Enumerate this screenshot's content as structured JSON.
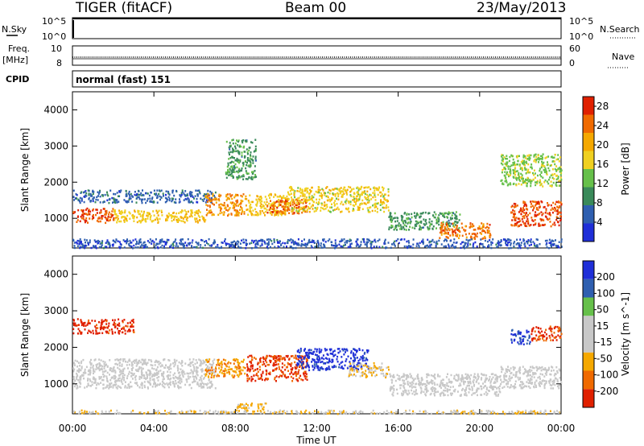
{
  "header": {
    "radar": "TIGER (fitACF)",
    "beam": "Beam 00",
    "date": "23/May/2013"
  },
  "strips": {
    "nsky_label": "N.Sky",
    "nsky_ticks": [
      "10^5",
      "10^0"
    ],
    "nsearch_label": "N.Search",
    "nsearch_ticks": [
      "10^5",
      "10^0"
    ],
    "freq_label": "Freq.",
    "freq_unit": "[MHz]",
    "freq_ticks": [
      "10",
      "8"
    ],
    "nave_label": "Nave",
    "nave_ticks": [
      "60",
      "0"
    ],
    "cpid_label": "CPID",
    "cpid_value": "normal (fast) 151"
  },
  "colors": {
    "power_scale": [
      "#1f2fd8",
      "#2f5fb0",
      "#3a8a5a",
      "#66c04a",
      "#f0d020",
      "#f5a800",
      "#f06a00",
      "#e02000"
    ],
    "velocity_scale": [
      "#e02000",
      "#f06a00",
      "#f5a800",
      "#c8c8c8",
      "#c8c8c8",
      "#66c04a",
      "#2f5fb0",
      "#1f2fd8"
    ]
  },
  "chart_data": [
    {
      "type": "heatmap",
      "panel": "power",
      "ylabel": "Slant Range [km]",
      "xlabel": "",
      "xticks": [
        "00:00",
        "04:00",
        "08:00",
        "12:00",
        "16:00",
        "20:00",
        "00:00"
      ],
      "xlim_hours": [
        0,
        24
      ],
      "ylim": [
        180,
        4500
      ],
      "yticks": [
        "1000",
        "2000",
        "3000",
        "4000"
      ],
      "colorbar": {
        "label": "Power [dB]",
        "ticks": [
          "4",
          "8",
          "12",
          "16",
          "20",
          "24",
          "28"
        ],
        "range": [
          0,
          30
        ]
      },
      "scatter_regions": [
        {
          "t": [
            0.0,
            2.0
          ],
          "r": [
            900,
            1300
          ],
          "value": 26
        },
        {
          "t": [
            2.0,
            6.5
          ],
          "r": [
            900,
            1250
          ],
          "value": 18
        },
        {
          "t": [
            0.0,
            7.0
          ],
          "r": [
            1450,
            1800
          ],
          "value": 6
        },
        {
          "t": [
            6.5,
            8.5
          ],
          "r": [
            1100,
            1700
          ],
          "value": 22
        },
        {
          "t": [
            8.5,
            10.5
          ],
          "r": [
            1100,
            1700
          ],
          "value": 18
        },
        {
          "t": [
            9.5,
            11.5
          ],
          "r": [
            1150,
            1550
          ],
          "value": 25
        },
        {
          "t": [
            10.5,
            15.5
          ],
          "r": [
            1200,
            1900
          ],
          "value": 17
        },
        {
          "t": [
            15.5,
            19.0
          ],
          "r": [
            700,
            1200
          ],
          "value": 10
        },
        {
          "t": [
            18.0,
            20.5
          ],
          "r": [
            450,
            900
          ],
          "value": 24
        },
        {
          "t": [
            21.5,
            24.0
          ],
          "r": [
            800,
            1500
          ],
          "value": 26
        },
        {
          "t": [
            21.0,
            24.0
          ],
          "r": [
            1900,
            2800
          ],
          "value": 14
        },
        {
          "t": [
            7.5,
            9.0
          ],
          "r": [
            2100,
            3200
          ],
          "value": 10
        },
        {
          "t": [
            0.0,
            24.0
          ],
          "r": [
            200,
            450
          ],
          "value": 5
        }
      ]
    },
    {
      "type": "heatmap",
      "panel": "velocity",
      "ylabel": "Slant Range [km]",
      "xlabel": "Time UT",
      "xticks": [
        "00:00",
        "04:00",
        "08:00",
        "12:00",
        "16:00",
        "20:00",
        "00:00"
      ],
      "xlim_hours": [
        0,
        24
      ],
      "ylim": [
        180,
        4500
      ],
      "yticks": [
        "1000",
        "2000",
        "3000",
        "4000"
      ],
      "colorbar": {
        "label": "Velocity [m s^-1]",
        "ticks": [
          "200",
          "100",
          "50",
          "15",
          "-15",
          "-50",
          "-100",
          "-200"
        ],
        "range": [
          -250,
          250
        ]
      },
      "scatter_regions": [
        {
          "t": [
            0.0,
            7.0
          ],
          "r": [
            900,
            1700
          ],
          "value": 0
        },
        {
          "t": [
            0.0,
            3.0
          ],
          "r": [
            2400,
            2800
          ],
          "value": -220
        },
        {
          "t": [
            6.5,
            8.5
          ],
          "r": [
            1200,
            1700
          ],
          "value": -120
        },
        {
          "t": [
            8.5,
            11.5
          ],
          "r": [
            1100,
            1800
          ],
          "value": -200
        },
        {
          "t": [
            11.0,
            14.5
          ],
          "r": [
            1400,
            2000
          ],
          "value": 220
        },
        {
          "t": [
            13.5,
            15.5
          ],
          "r": [
            1200,
            1600
          ],
          "value": -60
        },
        {
          "t": [
            15.5,
            21.0
          ],
          "r": [
            700,
            1300
          ],
          "value": 0
        },
        {
          "t": [
            21.5,
            22.5
          ],
          "r": [
            2100,
            2500
          ],
          "value": 200
        },
        {
          "t": [
            22.5,
            24.0
          ],
          "r": [
            2200,
            2600
          ],
          "value": -200
        },
        {
          "t": [
            21.0,
            24.0
          ],
          "r": [
            900,
            1500
          ],
          "value": 0
        },
        {
          "t": [
            8.0,
            9.5
          ],
          "r": [
            250,
            500
          ],
          "value": -80
        },
        {
          "t": [
            0.0,
            24.0
          ],
          "r": [
            200,
            300
          ],
          "value": -50
        }
      ]
    }
  ]
}
